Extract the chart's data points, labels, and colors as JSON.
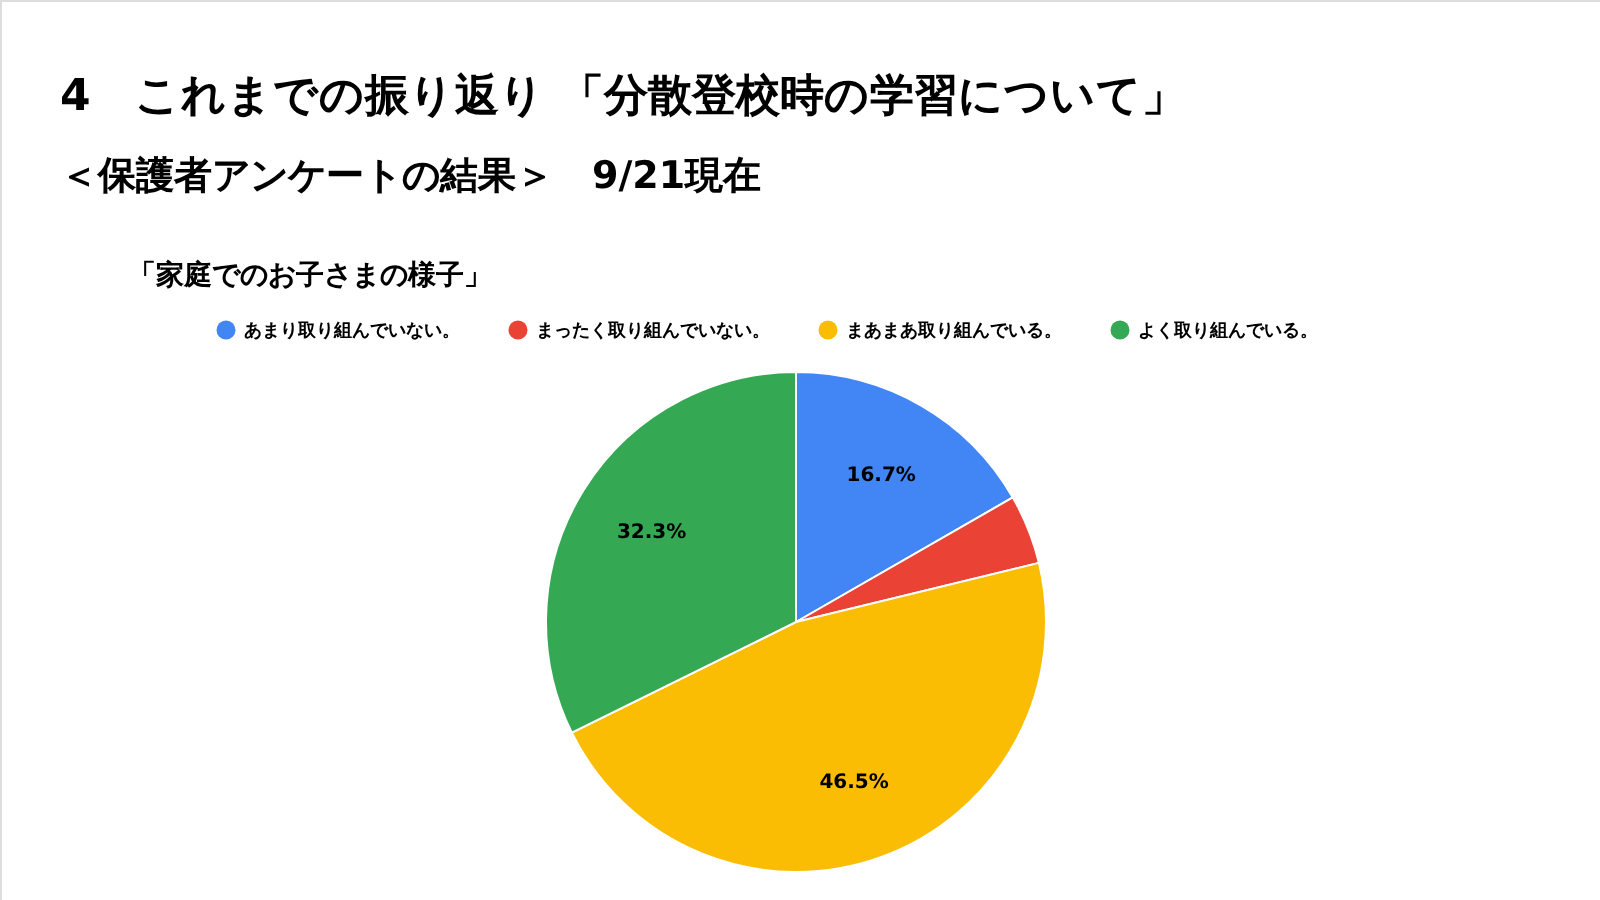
{
  "chart_data": {
    "type": "pie",
    "title": "4　これまでの振り返り 「分散登校時の学習について」",
    "subtitle": "＜保護者アンケートの結果＞　9/21現在",
    "annotations": [
      "「家庭でのお子さまの様子」"
    ],
    "categories": [
      "あまり取り組んでいない。",
      "まったく取り組んでいない。",
      "まあまあ取り組んでいる。",
      "よく取り組んでいる。"
    ],
    "values": [
      16.7,
      4.5,
      46.5,
      32.3
    ],
    "colors": [
      "#4285f4",
      "#ea4335",
      "#fbbc04",
      "#34a853"
    ],
    "value_labels": [
      "16.7%",
      null,
      "46.5%",
      "32.3%"
    ],
    "legend": "top"
  }
}
